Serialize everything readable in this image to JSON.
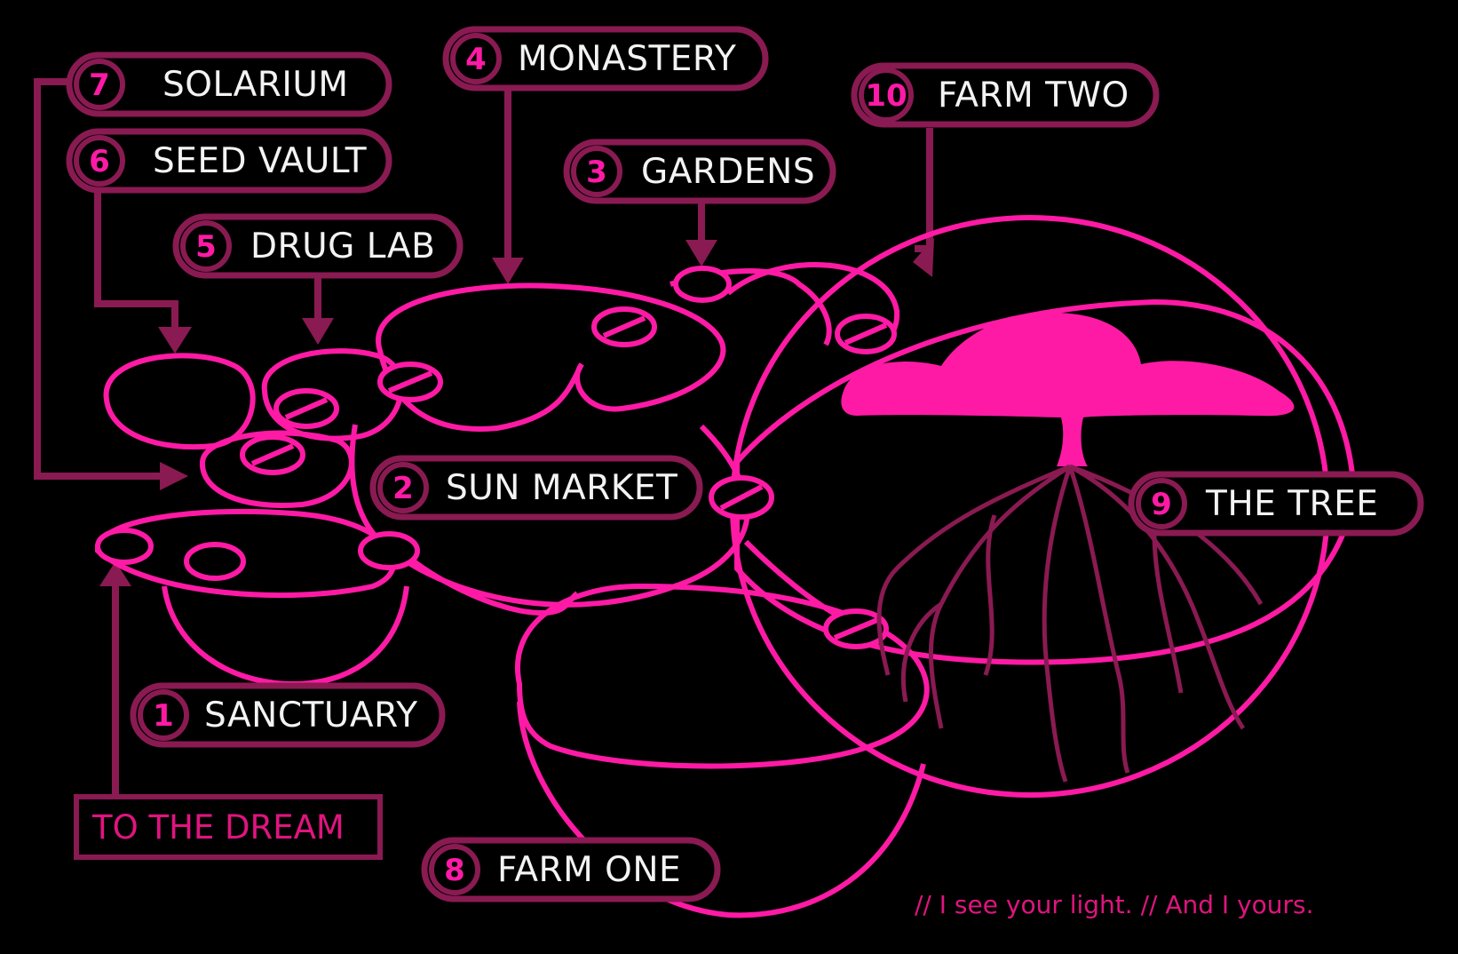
{
  "map": {
    "locations": [
      {
        "id": "sanctuary",
        "number": "1",
        "name": "SANCTUARY"
      },
      {
        "id": "sun-market",
        "number": "2",
        "name": "SUN MARKET"
      },
      {
        "id": "gardens",
        "number": "3",
        "name": "GARDENS"
      },
      {
        "id": "monastery",
        "number": "4",
        "name": "MONASTERY"
      },
      {
        "id": "drug-lab",
        "number": "5",
        "name": "DRUG LAB"
      },
      {
        "id": "seed-vault",
        "number": "6",
        "name": "SEED VAULT"
      },
      {
        "id": "solarium",
        "number": "7",
        "name": "SOLARIUM"
      },
      {
        "id": "farm-one",
        "number": "8",
        "name": "FARM ONE"
      },
      {
        "id": "the-tree",
        "number": "9",
        "name": "THE TREE"
      },
      {
        "id": "farm-two",
        "number": "10",
        "name": "FARM TWO"
      }
    ],
    "exit_label": "TO THE DREAM",
    "footer_quote": "// I see your light. // And I yours."
  },
  "colors": {
    "background": "#000000",
    "accent": "#ff1aa6",
    "label_border": "#8a1a52",
    "label_text": "#f3f3f3"
  }
}
